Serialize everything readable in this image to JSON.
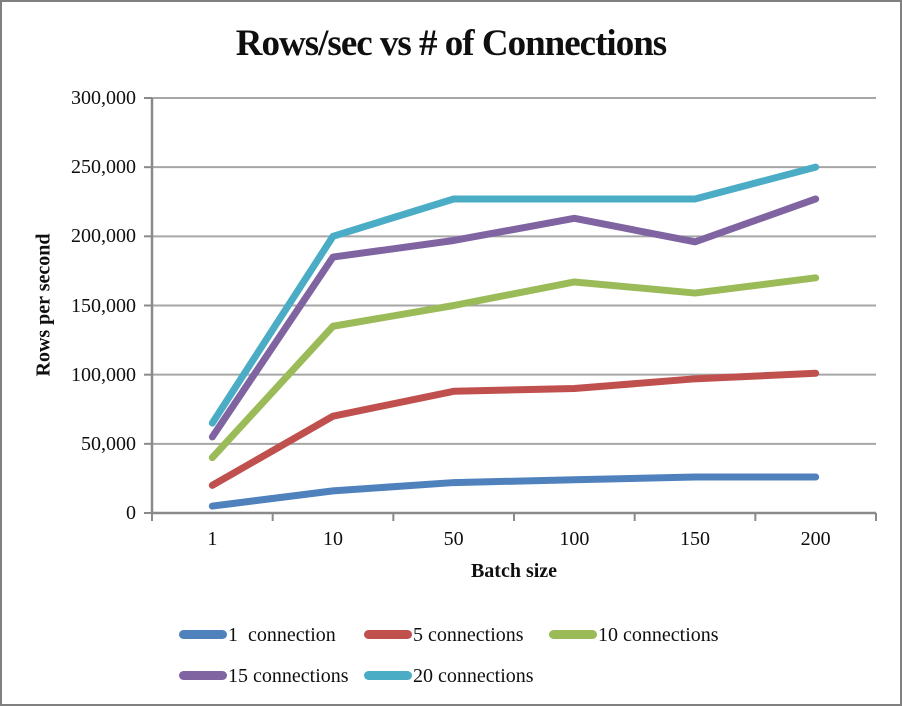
{
  "chart_data": {
    "type": "line",
    "title": "Rows/sec vs # of Connections",
    "xlabel": "Batch size",
    "ylabel": "Rows per second",
    "categories": [
      "1",
      "10",
      "50",
      "100",
      "150",
      "200"
    ],
    "ylim": [
      0,
      300000
    ],
    "y_ticks": [
      0,
      50000,
      100000,
      150000,
      200000,
      250000,
      300000
    ],
    "y_tick_labels": [
      "0",
      "50,000",
      "100,000",
      "150,000",
      "200,000",
      "250,000",
      "300,000"
    ],
    "grid": "horizontal",
    "legend_position": "bottom",
    "axis_color": "#8A8A8A",
    "gridline_color": "#A6A6A6",
    "series": [
      {
        "name": "1  connection",
        "color": "#4F81BD",
        "values": [
          5000,
          16000,
          22000,
          24000,
          26000,
          26000
        ]
      },
      {
        "name": "5 connections",
        "color": "#C0504D",
        "values": [
          20000,
          70000,
          88000,
          90000,
          97000,
          101000
        ]
      },
      {
        "name": "10 connections",
        "color": "#9BBB59",
        "values": [
          40000,
          135000,
          150000,
          167000,
          159000,
          170000
        ]
      },
      {
        "name": "15 connections",
        "color": "#8064A2",
        "values": [
          55000,
          185000,
          197000,
          213000,
          196000,
          227000
        ]
      },
      {
        "name": "20 connections",
        "color": "#4BACC6",
        "values": [
          65000,
          200000,
          227000,
          227000,
          227000,
          250000
        ]
      }
    ]
  }
}
